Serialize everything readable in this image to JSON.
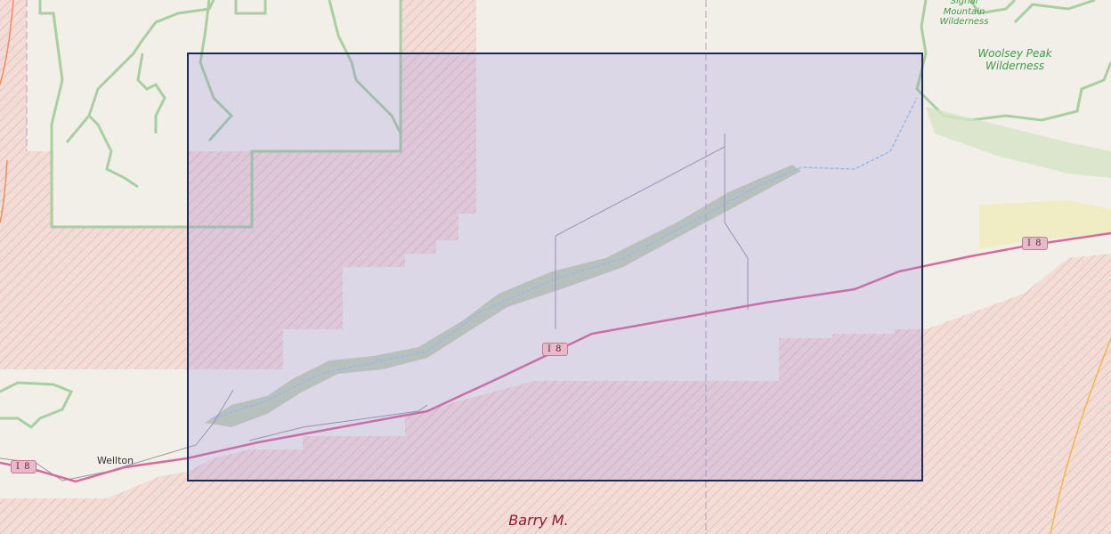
{
  "map": {
    "colors": {
      "land": "#f2efe9",
      "military_area": "#f1d6d2",
      "wilderness_border": "#a7cf9f",
      "highway": "#d86a9a",
      "selection_fill": "#8f82e0",
      "selection_border": "#1c2b4f"
    },
    "labels": {
      "signal_mountain": "Signal Mountain Wilderness",
      "woolsey_peak": "Woolsey Peak Wilderness",
      "town_wellton": "Wellton",
      "military_area": "Barry M."
    },
    "highway_shields": [
      "I 8",
      "I 8",
      "I 8"
    ],
    "selection_box": {
      "visible": true
    }
  }
}
